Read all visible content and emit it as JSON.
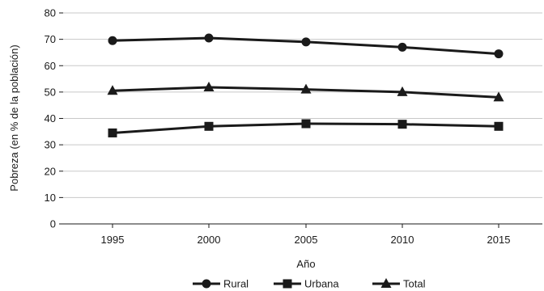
{
  "chart_data": {
    "type": "line",
    "title": "",
    "xlabel": "Año",
    "ylabel": "Pobreza (en % de la población)",
    "x": [
      "1995",
      "2000",
      "2005",
      "2010",
      "2015"
    ],
    "yticks": [
      "0",
      "10",
      "20",
      "30",
      "40",
      "50",
      "60",
      "70",
      "80"
    ],
    "ylim": [
      0,
      80
    ],
    "grid": "horizontal",
    "legend_position": "bottom",
    "series": [
      {
        "name": "Rural",
        "marker": "circle",
        "values": [
          69.5,
          70.5,
          69,
          67,
          64.5
        ]
      },
      {
        "name": "Urbana",
        "marker": "square",
        "values": [
          34.5,
          37,
          38,
          37.8,
          37
        ]
      },
      {
        "name": "Total",
        "marker": "triangle",
        "values": [
          50.5,
          51.8,
          51,
          50,
          48
        ]
      }
    ],
    "colors": {
      "line": "#1a1a1a",
      "grid": "#c8c8c8"
    }
  }
}
